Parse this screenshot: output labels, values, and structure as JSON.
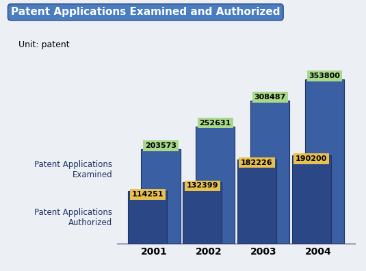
{
  "chart_data": {
    "type": "bar",
    "title": "Patent Applications Examined and Authorized",
    "subtitle": "Unit: patent",
    "categories": [
      "2001",
      "2002",
      "2003",
      "2004"
    ],
    "series": [
      {
        "name": "Patent Applications Examined",
        "color": "#3b5fa3",
        "values": [
          203573,
          252631,
          308487,
          353800
        ]
      },
      {
        "name": "Patent Applications Authorized",
        "color": "#2b4785",
        "values": [
          114251,
          132399,
          182226,
          190200
        ]
      }
    ],
    "data_labels": true,
    "tick_labels": "x",
    "grid": false
  }
}
